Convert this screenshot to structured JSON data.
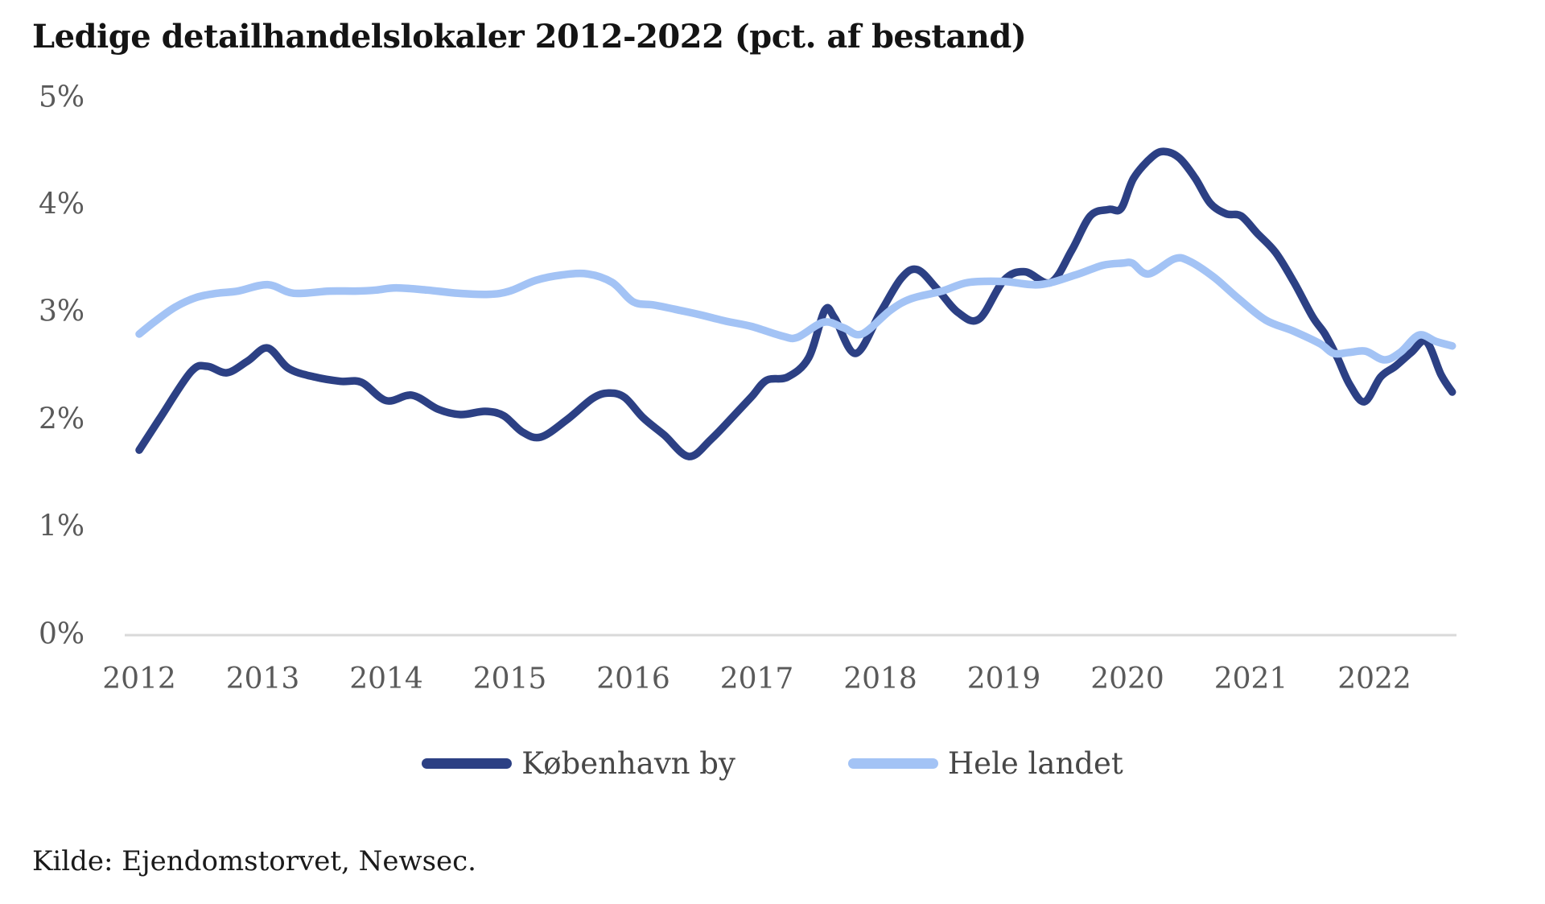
{
  "page": {
    "title": "Ledige detailhandelslokaler 2012-2022 (pct. af bestand)",
    "source": "Kilde: Ejendomstorvet, Newsec."
  },
  "colors": {
    "kobenhavn_line": "#2C4084",
    "hele_landet_line": "#A3C3F5",
    "axis_line": "#D9D9D9",
    "tick_label": "#5a5a5a",
    "legend_label": "#474747",
    "title_text": "#141414"
  },
  "legend": {
    "items": [
      {
        "label": "København by",
        "color": "#2C4084"
      },
      {
        "label": "Hele landet",
        "color": "#A3C3F5"
      }
    ]
  },
  "chart_data": {
    "type": "line",
    "title": "Ledige detailhandelslokaler 2012-2022 (pct. af bestand)",
    "xlabel": "",
    "ylabel": "pct. af bestand",
    "ylim": [
      0,
      5
    ],
    "xlim": [
      2012.0,
      2022.75
    ],
    "grid": false,
    "legend_position": "bottom",
    "y_ticks": [
      {
        "value": 0,
        "label": "0%"
      },
      {
        "value": 1,
        "label": "1%"
      },
      {
        "value": 2,
        "label": "2%"
      },
      {
        "value": 3,
        "label": "3%"
      },
      {
        "value": 4,
        "label": "4%"
      },
      {
        "value": 5,
        "label": "5%"
      }
    ],
    "x_ticks": [
      "2012",
      "2013",
      "2014",
      "2015",
      "2016",
      "2017",
      "2018",
      "2019",
      "2020",
      "2021",
      "2022"
    ],
    "series": [
      {
        "name": "København by",
        "color": "#2C4084",
        "points": [
          [
            2012.0,
            1.72
          ],
          [
            2012.17,
            2.02
          ],
          [
            2012.42,
            2.45
          ],
          [
            2012.55,
            2.5
          ],
          [
            2012.71,
            2.44
          ],
          [
            2012.88,
            2.55
          ],
          [
            2013.04,
            2.67
          ],
          [
            2013.21,
            2.48
          ],
          [
            2013.42,
            2.4
          ],
          [
            2013.63,
            2.36
          ],
          [
            2013.8,
            2.35
          ],
          [
            2014.0,
            2.18
          ],
          [
            2014.21,
            2.23
          ],
          [
            2014.42,
            2.1
          ],
          [
            2014.6,
            2.05
          ],
          [
            2014.8,
            2.08
          ],
          [
            2014.95,
            2.04
          ],
          [
            2015.1,
            1.89
          ],
          [
            2015.25,
            1.84
          ],
          [
            2015.46,
            2.0
          ],
          [
            2015.67,
            2.2
          ],
          [
            2015.8,
            2.25
          ],
          [
            2015.93,
            2.21
          ],
          [
            2016.08,
            2.02
          ],
          [
            2016.25,
            1.86
          ],
          [
            2016.45,
            1.66
          ],
          [
            2016.63,
            1.82
          ],
          [
            2016.83,
            2.06
          ],
          [
            2016.96,
            2.22
          ],
          [
            2017.08,
            2.37
          ],
          [
            2017.25,
            2.4
          ],
          [
            2017.42,
            2.58
          ],
          [
            2017.55,
            3.02
          ],
          [
            2017.63,
            2.95
          ],
          [
            2017.8,
            2.62
          ],
          [
            2018.0,
            3.0
          ],
          [
            2018.17,
            3.32
          ],
          [
            2018.3,
            3.4
          ],
          [
            2018.46,
            3.22
          ],
          [
            2018.63,
            3.0
          ],
          [
            2018.8,
            2.94
          ],
          [
            2019.0,
            3.3
          ],
          [
            2019.17,
            3.38
          ],
          [
            2019.38,
            3.28
          ],
          [
            2019.55,
            3.58
          ],
          [
            2019.7,
            3.9
          ],
          [
            2019.85,
            3.96
          ],
          [
            2019.95,
            3.97
          ],
          [
            2020.05,
            4.25
          ],
          [
            2020.2,
            4.45
          ],
          [
            2020.3,
            4.5
          ],
          [
            2020.42,
            4.44
          ],
          [
            2020.55,
            4.25
          ],
          [
            2020.67,
            4.02
          ],
          [
            2020.8,
            3.92
          ],
          [
            2020.92,
            3.9
          ],
          [
            2021.05,
            3.74
          ],
          [
            2021.2,
            3.56
          ],
          [
            2021.35,
            3.28
          ],
          [
            2021.5,
            2.96
          ],
          [
            2021.6,
            2.8
          ],
          [
            2021.7,
            2.58
          ],
          [
            2021.8,
            2.33
          ],
          [
            2021.92,
            2.17
          ],
          [
            2022.05,
            2.4
          ],
          [
            2022.17,
            2.5
          ],
          [
            2022.3,
            2.63
          ],
          [
            2022.42,
            2.73
          ],
          [
            2022.54,
            2.42
          ],
          [
            2022.63,
            2.26
          ]
        ]
      },
      {
        "name": "Hele landet",
        "color": "#A3C3F5",
        "points": [
          [
            2012.0,
            2.8
          ],
          [
            2012.13,
            2.92
          ],
          [
            2012.29,
            3.05
          ],
          [
            2012.46,
            3.14
          ],
          [
            2012.63,
            3.18
          ],
          [
            2012.8,
            3.2
          ],
          [
            2013.04,
            3.26
          ],
          [
            2013.25,
            3.18
          ],
          [
            2013.54,
            3.2
          ],
          [
            2013.75,
            3.2
          ],
          [
            2013.92,
            3.21
          ],
          [
            2014.08,
            3.23
          ],
          [
            2014.33,
            3.21
          ],
          [
            2014.58,
            3.18
          ],
          [
            2014.83,
            3.17
          ],
          [
            2015.0,
            3.2
          ],
          [
            2015.21,
            3.3
          ],
          [
            2015.42,
            3.35
          ],
          [
            2015.63,
            3.36
          ],
          [
            2015.83,
            3.28
          ],
          [
            2016.0,
            3.1
          ],
          [
            2016.17,
            3.07
          ],
          [
            2016.38,
            3.02
          ],
          [
            2016.54,
            2.98
          ],
          [
            2016.75,
            2.92
          ],
          [
            2016.96,
            2.87
          ],
          [
            2017.21,
            2.78
          ],
          [
            2017.33,
            2.77
          ],
          [
            2017.54,
            2.91
          ],
          [
            2017.7,
            2.86
          ],
          [
            2017.85,
            2.8
          ],
          [
            2018.08,
            3.02
          ],
          [
            2018.25,
            3.13
          ],
          [
            2018.5,
            3.2
          ],
          [
            2018.71,
            3.28
          ],
          [
            2019.0,
            3.29
          ],
          [
            2019.29,
            3.26
          ],
          [
            2019.58,
            3.35
          ],
          [
            2019.8,
            3.44
          ],
          [
            2019.96,
            3.46
          ],
          [
            2020.04,
            3.46
          ],
          [
            2020.17,
            3.36
          ],
          [
            2020.38,
            3.5
          ],
          [
            2020.5,
            3.48
          ],
          [
            2020.7,
            3.33
          ],
          [
            2020.9,
            3.13
          ],
          [
            2021.12,
            2.93
          ],
          [
            2021.34,
            2.83
          ],
          [
            2021.56,
            2.71
          ],
          [
            2021.67,
            2.62
          ],
          [
            2021.8,
            2.63
          ],
          [
            2021.93,
            2.64
          ],
          [
            2022.08,
            2.56
          ],
          [
            2022.21,
            2.63
          ],
          [
            2022.36,
            2.79
          ],
          [
            2022.5,
            2.73
          ],
          [
            2022.63,
            2.69
          ]
        ]
      }
    ]
  }
}
